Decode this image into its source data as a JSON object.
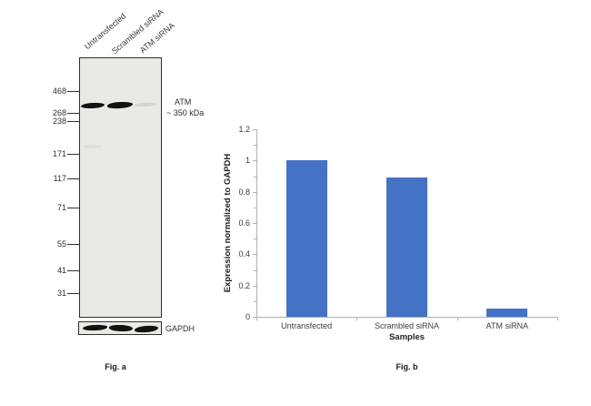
{
  "fig_a": {
    "caption": "Fig. a",
    "lane_labels": [
      "Untransfected",
      "Scrambled siRNA",
      "ATM siRNA"
    ],
    "mw_markers": [
      "468",
      "268",
      "238",
      "171",
      "117",
      "71",
      "55",
      "41",
      "31"
    ],
    "target_label": "ATM",
    "target_mw_label": "~ 350 kDa",
    "loading_control_label": "GAPDH"
  },
  "fig_b": {
    "caption": "Fig. b"
  },
  "chart_data": {
    "type": "bar",
    "categories": [
      "Untransfected",
      "Scrambled siRNA",
      "ATM siRNA"
    ],
    "values": [
      1.0,
      0.89,
      0.05
    ],
    "title": "",
    "xlabel": "Samples",
    "ylabel": "Expression normalized to GAPDH",
    "ylim": [
      0,
      1.2
    ],
    "ytick_step": 0.2,
    "yminor_step": 0.1,
    "grid": false,
    "legend": "none",
    "bar_color": "#4472C4",
    "axis_color": "#b0b0b0",
    "text_color": "#3c3c3c"
  }
}
